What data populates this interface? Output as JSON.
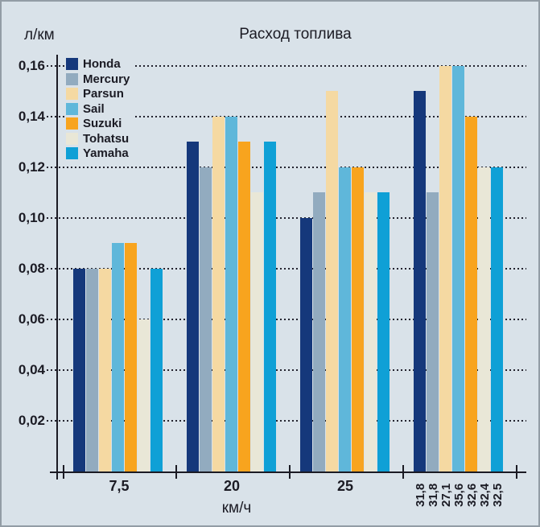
{
  "colors": {
    "background": "#d9e2e9",
    "frame_border": "#939da5",
    "text": "#1b1b24",
    "gridline": "#23232e"
  },
  "chart_data": {
    "type": "bar",
    "title": "Расход топлива",
    "ylabel": "л/км",
    "xlabel": "км/ч",
    "ylim": [
      0,
      0.17
    ],
    "grid": "dotted-horizontal",
    "legend_position": "top-left",
    "yticks": {
      "values": [
        0.16,
        0.14,
        0.12,
        0.1,
        0.08,
        0.06,
        0.04,
        0.02
      ],
      "labels": [
        "0,16",
        "0,14",
        "0,12",
        "0,10",
        "0,08",
        "0,06",
        "0,04",
        "0,02"
      ]
    },
    "categories": [
      "7,5",
      "20",
      "25",
      ""
    ],
    "last_group_bar_labels": [
      "31,8",
      "31,8",
      "27,1",
      "35,6",
      "32,6",
      "32,4",
      "32,5"
    ],
    "series": [
      {
        "name": "Honda",
        "color": "#15387b",
        "values": [
          0.08,
          0.13,
          0.1,
          0.15
        ]
      },
      {
        "name": "Mercury",
        "color": "#92abbf",
        "values": [
          0.08,
          0.12,
          0.11,
          0.11
        ]
      },
      {
        "name": "Parsun",
        "color": "#f5d9a2",
        "values": [
          0.08,
          0.14,
          0.15,
          0.16
        ]
      },
      {
        "name": "Sail",
        "color": "#5fb7da",
        "values": [
          0.09,
          0.14,
          0.12,
          0.16
        ]
      },
      {
        "name": "Suzuki",
        "color": "#f8a41e",
        "values": [
          0.09,
          0.13,
          0.12,
          0.14
        ]
      },
      {
        "name": "Tohatsu",
        "color": "#e9e7d7",
        "values": [
          0.06,
          0.11,
          0.11,
          0.12
        ]
      },
      {
        "name": "Yamaha",
        "color": "#0fa0d6",
        "values": [
          0.08,
          0.13,
          0.11,
          0.12
        ]
      }
    ]
  }
}
